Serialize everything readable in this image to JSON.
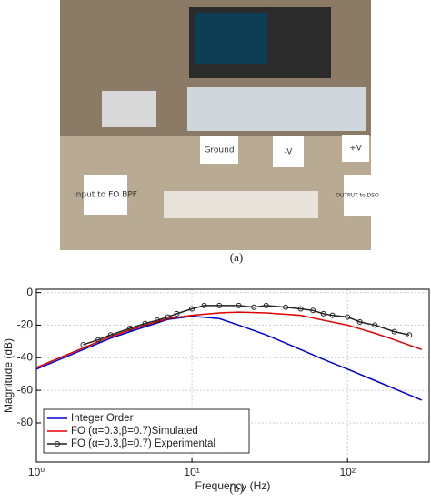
{
  "photo": {
    "labels": [
      "Input to FO BPF",
      "Ground",
      "-V",
      "+V",
      "OUTPUT to DSO"
    ],
    "caption": "(a)"
  },
  "chart_data": {
    "type": "line",
    "caption": "(b)",
    "x_label": "Frequency (Hz)",
    "y_label": "Magnitude (dB)",
    "xscale": "log",
    "xlim": [
      1,
      335
    ],
    "ylim": [
      -104,
      2
    ],
    "xticks": [
      {
        "value": 1,
        "label": "10⁰"
      },
      {
        "value": 10,
        "label": "10¹"
      },
      {
        "value": 100,
        "label": "10²"
      }
    ],
    "yticks": [
      0,
      -20,
      -40,
      -60,
      -80
    ],
    "grid": true,
    "legend": "lower left",
    "series": [
      {
        "name": "Integer Order",
        "color": "#0000cc",
        "marker": "none",
        "x": [
          1,
          1.5,
          2,
          3,
          4,
          5,
          7,
          10,
          15,
          20,
          30,
          40,
          50,
          70,
          100,
          150,
          200,
          300
        ],
        "values": [
          -47,
          -40,
          -35,
          -28,
          -24,
          -21,
          -16.5,
          -14.5,
          -16,
          -20,
          -26,
          -31,
          -35,
          -41,
          -47,
          -54,
          -59,
          -66
        ]
      },
      {
        "name": "FO (α=0.3,β=0.7)Simulated",
        "color": "#e00000",
        "marker": "none",
        "x": [
          1,
          1.5,
          2,
          3,
          4,
          5,
          7,
          10,
          15,
          20,
          30,
          50,
          70,
          100,
          150,
          200,
          300
        ],
        "values": [
          -46,
          -39,
          -34,
          -27,
          -23,
          -20,
          -16,
          -14,
          -12.5,
          -12,
          -12.5,
          -14,
          -17,
          -20,
          -25,
          -29,
          -35
        ]
      },
      {
        "name": "FO (α=0.3,β=0.7) Experimental",
        "color": "#222222",
        "marker": "o",
        "x": [
          2,
          2.5,
          3,
          4,
          5,
          6,
          7,
          8,
          10,
          12,
          15,
          20,
          25,
          30,
          40,
          50,
          60,
          70,
          80,
          100,
          120,
          150,
          200,
          250
        ],
        "values": [
          -32,
          -29,
          -26,
          -22,
          -19,
          -17,
          -15,
          -13,
          -10,
          -8,
          -8,
          -8,
          -9,
          -8,
          -9,
          -10,
          -11,
          -13,
          -14,
          -15,
          -18,
          -20,
          -24,
          -26
        ]
      }
    ]
  }
}
